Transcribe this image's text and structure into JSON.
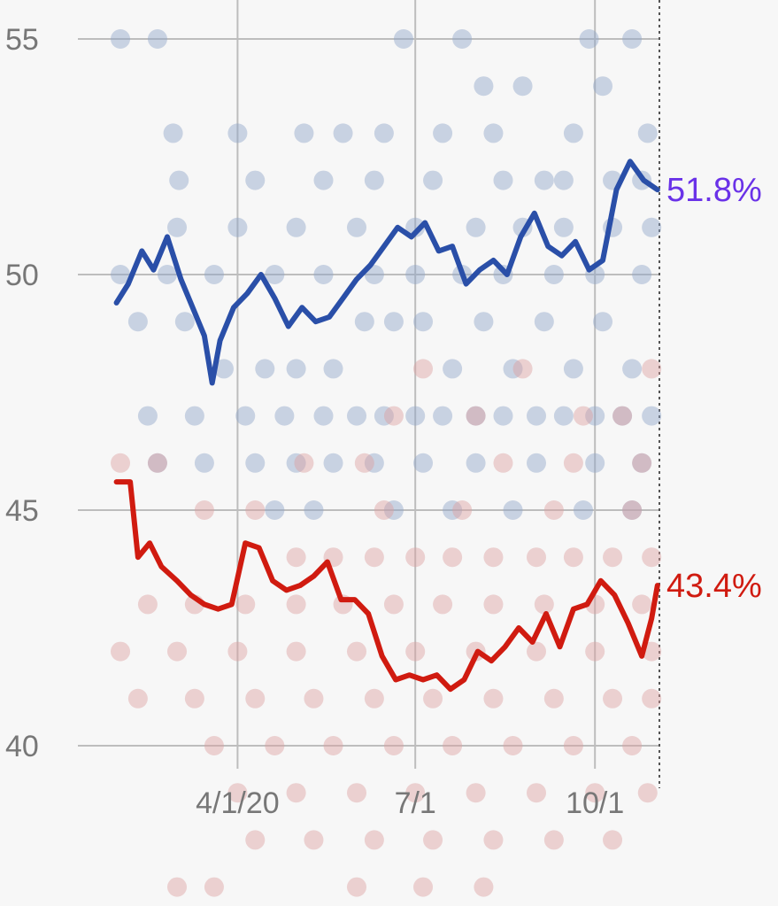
{
  "chart_data": {
    "type": "scatter",
    "title": "",
    "xlabel": "",
    "ylabel": "",
    "x_domain": [
      "2020-01-27",
      "2020-11-03"
    ],
    "ylim": [
      38,
      56
    ],
    "y_ticks": [
      {
        "value": 40,
        "label": "40"
      },
      {
        "value": 45,
        "label": "45"
      },
      {
        "value": 50,
        "label": "50"
      },
      {
        "value": 55,
        "label": "55"
      }
    ],
    "x_ticks": [
      {
        "date": "2020-04-01",
        "label": "4/1/20"
      },
      {
        "date": "2020-07-01",
        "label": "7/1"
      },
      {
        "date": "2020-10-01",
        "label": "10/1"
      }
    ],
    "grid": true,
    "series": [
      {
        "color": "#2a4fa8",
        "dot_color": "#8ea3c8",
        "end_label": "51.8%",
        "end_label_color": "#6a32e8",
        "end_value": 51.8,
        "trend": [
          [
            "2020-01-30",
            49.4
          ],
          [
            "2020-02-05",
            49.8
          ],
          [
            "2020-02-12",
            50.5
          ],
          [
            "2020-02-18",
            50.1
          ],
          [
            "2020-02-25",
            50.8
          ],
          [
            "2020-03-03",
            49.9
          ],
          [
            "2020-03-10",
            49.2
          ],
          [
            "2020-03-15",
            48.7
          ],
          [
            "2020-03-19",
            47.7
          ],
          [
            "2020-03-23",
            48.6
          ],
          [
            "2020-03-30",
            49.3
          ],
          [
            "2020-04-06",
            49.6
          ],
          [
            "2020-04-13",
            50.0
          ],
          [
            "2020-04-20",
            49.5
          ],
          [
            "2020-04-27",
            48.9
          ],
          [
            "2020-05-04",
            49.3
          ],
          [
            "2020-05-11",
            49.0
          ],
          [
            "2020-05-18",
            49.1
          ],
          [
            "2020-05-25",
            49.5
          ],
          [
            "2020-06-01",
            49.9
          ],
          [
            "2020-06-08",
            50.2
          ],
          [
            "2020-06-15",
            50.6
          ],
          [
            "2020-06-22",
            51.0
          ],
          [
            "2020-06-29",
            50.8
          ],
          [
            "2020-07-06",
            51.1
          ],
          [
            "2020-07-13",
            50.5
          ],
          [
            "2020-07-20",
            50.6
          ],
          [
            "2020-07-27",
            49.8
          ],
          [
            "2020-08-03",
            50.1
          ],
          [
            "2020-08-10",
            50.3
          ],
          [
            "2020-08-17",
            50.0
          ],
          [
            "2020-08-24",
            50.8
          ],
          [
            "2020-08-31",
            51.3
          ],
          [
            "2020-09-07",
            50.6
          ],
          [
            "2020-09-14",
            50.4
          ],
          [
            "2020-09-21",
            50.7
          ],
          [
            "2020-09-28",
            50.1
          ],
          [
            "2020-10-05",
            50.3
          ],
          [
            "2020-10-12",
            51.8
          ],
          [
            "2020-10-19",
            52.4
          ],
          [
            "2020-10-26",
            52.0
          ],
          [
            "2020-11-02",
            51.8
          ]
        ],
        "polls": [
          [
            "2020-02-01",
            55
          ],
          [
            "2020-02-20",
            55
          ],
          [
            "2020-03-02",
            52
          ],
          [
            "2020-04-10",
            52
          ],
          [
            "2020-05-05",
            53
          ],
          [
            "2020-05-25",
            53
          ],
          [
            "2020-06-10",
            52
          ],
          [
            "2020-06-25",
            55
          ],
          [
            "2020-07-10",
            52
          ],
          [
            "2020-07-25",
            55
          ],
          [
            "2020-08-10",
            53
          ],
          [
            "2020-08-25",
            54
          ],
          [
            "2020-09-05",
            52
          ],
          [
            "2020-09-20",
            53
          ],
          [
            "2020-10-05",
            54
          ],
          [
            "2020-10-20",
            55
          ],
          [
            "2020-10-28",
            53
          ],
          [
            "2020-02-10",
            49
          ],
          [
            "2020-03-05",
            49
          ],
          [
            "2020-03-25",
            48
          ],
          [
            "2020-04-15",
            48
          ],
          [
            "2020-05-01",
            48
          ],
          [
            "2020-05-20",
            48
          ],
          [
            "2020-06-05",
            49
          ],
          [
            "2020-06-20",
            49
          ],
          [
            "2020-07-05",
            49
          ],
          [
            "2020-07-20",
            48
          ],
          [
            "2020-08-05",
            49
          ],
          [
            "2020-08-20",
            48
          ],
          [
            "2020-09-05",
            49
          ],
          [
            "2020-09-20",
            48
          ],
          [
            "2020-10-05",
            49
          ],
          [
            "2020-10-20",
            48
          ],
          [
            "2020-02-15",
            47
          ],
          [
            "2020-03-10",
            47
          ],
          [
            "2020-04-05",
            47
          ],
          [
            "2020-04-25",
            47
          ],
          [
            "2020-05-15",
            47
          ],
          [
            "2020-06-01",
            47
          ],
          [
            "2020-06-15",
            47
          ],
          [
            "2020-07-01",
            47
          ],
          [
            "2020-07-15",
            47
          ],
          [
            "2020-08-01",
            47
          ],
          [
            "2020-08-15",
            47
          ],
          [
            "2020-09-01",
            47
          ],
          [
            "2020-09-15",
            47
          ],
          [
            "2020-10-01",
            47
          ],
          [
            "2020-10-15",
            47
          ],
          [
            "2020-10-30",
            47
          ],
          [
            "2020-02-20",
            46
          ],
          [
            "2020-03-15",
            46
          ],
          [
            "2020-04-10",
            46
          ],
          [
            "2020-05-01",
            46
          ],
          [
            "2020-05-20",
            46
          ],
          [
            "2020-06-10",
            46
          ],
          [
            "2020-07-05",
            46
          ],
          [
            "2020-08-01",
            46
          ],
          [
            "2020-09-01",
            46
          ],
          [
            "2020-10-01",
            46
          ],
          [
            "2020-10-25",
            46
          ],
          [
            "2020-04-20",
            45
          ],
          [
            "2020-05-10",
            45
          ],
          [
            "2020-06-20",
            45
          ],
          [
            "2020-07-20",
            45
          ],
          [
            "2020-08-20",
            45
          ],
          [
            "2020-09-25",
            45
          ],
          [
            "2020-10-20",
            45
          ],
          [
            "2020-02-01",
            50
          ],
          [
            "2020-02-25",
            50
          ],
          [
            "2020-03-20",
            50
          ],
          [
            "2020-04-20",
            50
          ],
          [
            "2020-05-15",
            50
          ],
          [
            "2020-06-10",
            50
          ],
          [
            "2020-07-01",
            50
          ],
          [
            "2020-07-25",
            50
          ],
          [
            "2020-08-15",
            50
          ],
          [
            "2020-09-10",
            50
          ],
          [
            "2020-10-01",
            50
          ],
          [
            "2020-10-25",
            50
          ],
          [
            "2020-03-01",
            51
          ],
          [
            "2020-04-01",
            51
          ],
          [
            "2020-05-01",
            51
          ],
          [
            "2020-06-01",
            51
          ],
          [
            "2020-07-01",
            51
          ],
          [
            "2020-08-01",
            51
          ],
          [
            "2020-08-25",
            51
          ],
          [
            "2020-09-15",
            51
          ],
          [
            "2020-10-10",
            51
          ],
          [
            "2020-10-30",
            51
          ],
          [
            "2020-02-28",
            53
          ],
          [
            "2020-05-15",
            52
          ],
          [
            "2020-06-15",
            53
          ],
          [
            "2020-07-15",
            53
          ],
          [
            "2020-08-15",
            52
          ],
          [
            "2020-09-15",
            52
          ],
          [
            "2020-10-10",
            52
          ],
          [
            "2020-10-25",
            52
          ],
          [
            "2020-04-01",
            53
          ],
          [
            "2020-08-05",
            54
          ],
          [
            "2020-09-28",
            55
          ]
        ]
      },
      {
        "color": "#d01b10",
        "dot_color": "#dba0a0",
        "end_label": "43.4%",
        "end_label_color": "#d01b10",
        "end_value": 43.4,
        "trend": [
          [
            "2020-01-30",
            45.6
          ],
          [
            "2020-02-06",
            45.6
          ],
          [
            "2020-02-10",
            44.0
          ],
          [
            "2020-02-16",
            44.3
          ],
          [
            "2020-02-22",
            43.8
          ],
          [
            "2020-03-01",
            43.5
          ],
          [
            "2020-03-08",
            43.2
          ],
          [
            "2020-03-15",
            43.0
          ],
          [
            "2020-03-22",
            42.9
          ],
          [
            "2020-03-29",
            43.0
          ],
          [
            "2020-04-05",
            44.3
          ],
          [
            "2020-04-12",
            44.2
          ],
          [
            "2020-04-19",
            43.5
          ],
          [
            "2020-04-26",
            43.3
          ],
          [
            "2020-05-03",
            43.4
          ],
          [
            "2020-05-10",
            43.6
          ],
          [
            "2020-05-17",
            43.9
          ],
          [
            "2020-05-24",
            43.1
          ],
          [
            "2020-05-31",
            43.1
          ],
          [
            "2020-06-07",
            42.8
          ],
          [
            "2020-06-14",
            41.9
          ],
          [
            "2020-06-21",
            41.4
          ],
          [
            "2020-06-28",
            41.5
          ],
          [
            "2020-07-05",
            41.4
          ],
          [
            "2020-07-12",
            41.5
          ],
          [
            "2020-07-19",
            41.2
          ],
          [
            "2020-07-26",
            41.4
          ],
          [
            "2020-08-02",
            42.0
          ],
          [
            "2020-08-09",
            41.8
          ],
          [
            "2020-08-16",
            42.1
          ],
          [
            "2020-08-23",
            42.5
          ],
          [
            "2020-08-30",
            42.2
          ],
          [
            "2020-09-06",
            42.8
          ],
          [
            "2020-09-13",
            42.1
          ],
          [
            "2020-09-20",
            42.9
          ],
          [
            "2020-09-27",
            43.0
          ],
          [
            "2020-10-04",
            43.5
          ],
          [
            "2020-10-11",
            43.2
          ],
          [
            "2020-10-18",
            42.6
          ],
          [
            "2020-10-25",
            41.9
          ],
          [
            "2020-10-30",
            42.7
          ],
          [
            "2020-11-02",
            43.4
          ]
        ],
        "polls": [
          [
            "2020-02-01",
            46
          ],
          [
            "2020-02-20",
            46
          ],
          [
            "2020-03-15",
            45
          ],
          [
            "2020-04-10",
            45
          ],
          [
            "2020-05-01",
            44
          ],
          [
            "2020-05-20",
            44
          ],
          [
            "2020-06-10",
            44
          ],
          [
            "2020-07-01",
            44
          ],
          [
            "2020-07-20",
            44
          ],
          [
            "2020-08-10",
            44
          ],
          [
            "2020-09-01",
            44
          ],
          [
            "2020-09-20",
            44
          ],
          [
            "2020-10-10",
            44
          ],
          [
            "2020-10-30",
            44
          ],
          [
            "2020-02-15",
            43
          ],
          [
            "2020-03-10",
            43
          ],
          [
            "2020-04-05",
            43
          ],
          [
            "2020-05-01",
            43
          ],
          [
            "2020-05-25",
            43
          ],
          [
            "2020-06-20",
            43
          ],
          [
            "2020-07-15",
            43
          ],
          [
            "2020-08-10",
            43
          ],
          [
            "2020-09-05",
            43
          ],
          [
            "2020-10-01",
            43
          ],
          [
            "2020-10-25",
            43
          ],
          [
            "2020-02-01",
            42
          ],
          [
            "2020-03-01",
            42
          ],
          [
            "2020-04-01",
            42
          ],
          [
            "2020-05-01",
            42
          ],
          [
            "2020-06-01",
            42
          ],
          [
            "2020-07-01",
            42
          ],
          [
            "2020-08-01",
            42
          ],
          [
            "2020-09-01",
            42
          ],
          [
            "2020-10-01",
            42
          ],
          [
            "2020-10-30",
            42
          ],
          [
            "2020-02-10",
            41
          ],
          [
            "2020-03-10",
            41
          ],
          [
            "2020-04-10",
            41
          ],
          [
            "2020-05-10",
            41
          ],
          [
            "2020-06-10",
            41
          ],
          [
            "2020-07-10",
            41
          ],
          [
            "2020-08-10",
            41
          ],
          [
            "2020-09-10",
            41
          ],
          [
            "2020-10-10",
            41
          ],
          [
            "2020-10-30",
            41
          ],
          [
            "2020-03-20",
            40
          ],
          [
            "2020-04-20",
            40
          ],
          [
            "2020-05-20",
            40
          ],
          [
            "2020-06-20",
            40
          ],
          [
            "2020-07-20",
            40
          ],
          [
            "2020-08-20",
            40
          ],
          [
            "2020-09-20",
            40
          ],
          [
            "2020-10-20",
            40
          ],
          [
            "2020-04-01",
            39
          ],
          [
            "2020-05-01",
            39
          ],
          [
            "2020-06-01",
            39
          ],
          [
            "2020-07-01",
            39
          ],
          [
            "2020-08-01",
            39
          ],
          [
            "2020-09-01",
            39
          ],
          [
            "2020-10-01",
            39
          ],
          [
            "2020-10-28",
            39
          ],
          [
            "2020-04-10",
            38
          ],
          [
            "2020-05-10",
            38
          ],
          [
            "2020-06-10",
            38
          ],
          [
            "2020-07-10",
            38
          ],
          [
            "2020-08-10",
            38
          ],
          [
            "2020-09-10",
            38
          ],
          [
            "2020-10-10",
            38
          ],
          [
            "2020-03-01",
            37
          ],
          [
            "2020-03-20",
            37
          ],
          [
            "2020-06-01",
            37
          ],
          [
            "2020-07-05",
            37
          ],
          [
            "2020-08-05",
            37
          ],
          [
            "2020-06-20",
            47
          ],
          [
            "2020-07-05",
            48
          ],
          [
            "2020-08-01",
            47
          ],
          [
            "2020-08-25",
            48
          ],
          [
            "2020-09-20",
            46
          ],
          [
            "2020-10-15",
            47
          ],
          [
            "2020-10-30",
            48
          ],
          [
            "2020-05-05",
            46
          ],
          [
            "2020-06-15",
            45
          ],
          [
            "2020-07-25",
            45
          ],
          [
            "2020-09-10",
            45
          ],
          [
            "2020-10-20",
            45
          ],
          [
            "2020-06-05",
            46
          ],
          [
            "2020-08-15",
            46
          ],
          [
            "2020-09-25",
            47
          ],
          [
            "2020-10-25",
            46
          ]
        ]
      }
    ]
  }
}
